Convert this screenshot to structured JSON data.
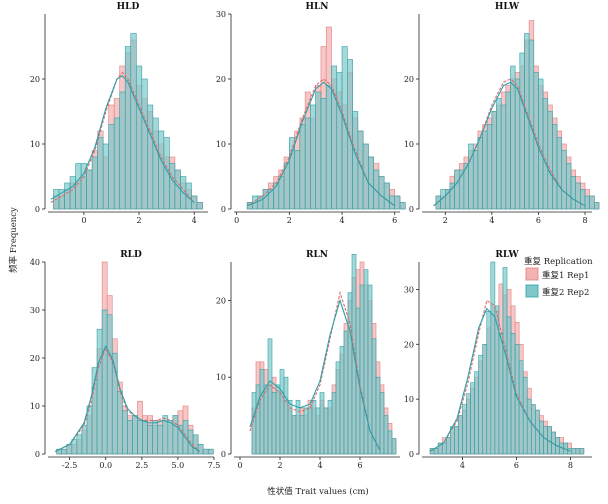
{
  "figure": {
    "ylabel": "频率 Frequency",
    "xlabel": "性状值 Trait values (cm)"
  },
  "legend": {
    "title": "重复 Replication",
    "entries": [
      {
        "label": "重复1 Rep1",
        "fill": "#f4b3b3",
        "stroke": "#e08080"
      },
      {
        "label": "重复2 Rep2",
        "fill": "#7fc7c9",
        "stroke": "#2fa0a5"
      }
    ]
  },
  "colors": {
    "rep1_fill": "#f4b3b3",
    "rep1_stroke": "#e08080",
    "rep1_curve": "#e06b6b",
    "rep2_fill": "#7fc7c9",
    "rep2_stroke": "#2fa0a5",
    "rep2_curve": "#2aa0a8"
  },
  "chart_data": [
    {
      "type": "bar",
      "title": "HLD",
      "xlim": [
        -1.3,
        4.5
      ],
      "ylim": [
        0,
        30
      ],
      "xticks": [
        {
          "v": 0,
          "t": "0"
        },
        {
          "v": 2,
          "t": "2"
        },
        {
          "v": 4,
          "t": "4"
        }
      ],
      "yticks": [
        {
          "v": 0,
          "t": "0"
        },
        {
          "v": 10,
          "t": "10"
        },
        {
          "v": 20,
          "t": "20"
        }
      ],
      "bins": {
        "start": -1.1,
        "width": 0.2
      },
      "series": [
        {
          "name": "重复1 Rep1",
          "values": [
            2,
            2,
            3,
            4,
            4,
            5,
            6,
            9,
            12,
            8,
            16,
            17,
            22,
            24,
            26,
            19,
            17,
            15,
            12,
            10,
            8,
            8,
            6,
            4,
            3,
            2,
            1
          ]
        },
        {
          "name": "重复2 Rep2",
          "values": [
            3,
            3,
            4,
            5,
            7,
            7,
            6,
            8,
            11,
            10,
            13,
            14,
            18,
            25,
            27,
            22,
            20,
            16,
            14,
            12,
            11,
            7,
            6,
            5,
            4,
            2,
            1
          ]
        }
      ],
      "curves": [
        {
          "name": "重复1 Rep1",
          "x": [
            -1.2,
            -0.8,
            -0.4,
            0,
            0.4,
            0.8,
            1.2,
            1.4,
            1.6,
            2.0,
            2.4,
            2.8,
            3.2,
            3.6,
            4.0
          ],
          "y": [
            1,
            2,
            3,
            5,
            9,
            15,
            20,
            21,
            20,
            16,
            12,
            8,
            5,
            3,
            1
          ]
        },
        {
          "name": "重复2 Rep2",
          "x": [
            -1.2,
            -0.8,
            -0.4,
            0,
            0.4,
            0.8,
            1.2,
            1.4,
            1.6,
            2.0,
            2.4,
            2.8,
            3.2,
            3.6,
            4.0
          ],
          "y": [
            1.5,
            2.5,
            3.5,
            5.5,
            9.5,
            15.5,
            20,
            20.5,
            19.5,
            15.5,
            11.5,
            7.5,
            4.5,
            2.5,
            1
          ]
        }
      ]
    },
    {
      "type": "bar",
      "title": "HLN",
      "xlim": [
        -0.1,
        6.2
      ],
      "ylim": [
        0,
        30
      ],
      "xticks": [
        {
          "v": 0,
          "t": "0"
        },
        {
          "v": 2,
          "t": "2"
        },
        {
          "v": 4,
          "t": "4"
        },
        {
          "v": 6,
          "t": "6"
        }
      ],
      "yticks": [
        {
          "v": 0,
          "t": "0"
        },
        {
          "v": 10,
          "t": "10"
        },
        {
          "v": 20,
          "t": "20"
        },
        {
          "v": 30,
          "t": "30"
        }
      ],
      "bins": {
        "start": 0.4,
        "width": 0.2
      },
      "series": [
        {
          "name": "重复1 Rep1",
          "values": [
            1,
            1,
            2,
            3,
            4,
            5,
            6,
            8,
            9,
            12,
            14,
            18,
            14,
            19,
            25,
            28,
            20,
            18,
            16,
            21,
            14,
            12,
            10,
            8,
            7,
            5,
            4,
            3,
            2,
            1
          ]
        },
        {
          "name": "重复2 Rep2",
          "values": [
            1,
            2,
            2,
            3,
            3,
            4,
            5,
            7,
            11,
            9,
            13,
            14,
            16,
            18,
            17,
            19,
            22,
            21,
            25,
            23,
            15,
            12,
            10,
            8,
            6,
            5,
            4,
            2,
            2,
            1
          ]
        }
      ],
      "curves": [
        {
          "name": "重复1 Rep1",
          "x": [
            0.4,
            1.0,
            1.5,
            2.0,
            2.5,
            3.0,
            3.3,
            3.6,
            4.0,
            4.5,
            5.0,
            5.5,
            6.0
          ],
          "y": [
            0.5,
            2,
            4,
            8,
            14,
            19,
            20,
            19,
            15,
            9,
            4,
            2,
            0.5
          ]
        },
        {
          "name": "重复2 Rep2",
          "x": [
            0.4,
            1.0,
            1.5,
            2.0,
            2.5,
            3.0,
            3.3,
            3.6,
            4.0,
            4.5,
            5.0,
            5.5,
            6.0
          ],
          "y": [
            0.5,
            1.5,
            3.5,
            7.5,
            13.5,
            18.5,
            19.5,
            18.5,
            14.5,
            8.5,
            4,
            2,
            0.5
          ]
        }
      ]
    },
    {
      "type": "bar",
      "title": "HLW",
      "xlim": [
        1.0,
        8.3
      ],
      "ylim": [
        0,
        30
      ],
      "xticks": [
        {
          "v": 2,
          "t": "2"
        },
        {
          "v": 4,
          "t": "4"
        },
        {
          "v": 6,
          "t": "6"
        },
        {
          "v": 8,
          "t": "8"
        }
      ],
      "yticks": [
        {
          "v": 0,
          "t": "0"
        },
        {
          "v": 10,
          "t": "10"
        },
        {
          "v": 20,
          "t": "20"
        }
      ],
      "bins": {
        "start": 1.6,
        "width": 0.2
      },
      "series": [
        {
          "name": "重复1 Rep1",
          "values": [
            2,
            2,
            3,
            5,
            6,
            7,
            8,
            9,
            10,
            12,
            13,
            14,
            15,
            16,
            18,
            19,
            20,
            21,
            22,
            26,
            29,
            22,
            19,
            18,
            16,
            14,
            12,
            10,
            8,
            6,
            5,
            4,
            3,
            2,
            1
          ]
        },
        {
          "name": "重复2 Rep2",
          "values": [
            2,
            3,
            3,
            4,
            6,
            6,
            7,
            10,
            9,
            11,
            12,
            13,
            15,
            17,
            16,
            18,
            22,
            20,
            24,
            27,
            26,
            21,
            20,
            17,
            15,
            13,
            11,
            9,
            7,
            5,
            4,
            3,
            2,
            2,
            1
          ]
        }
      ],
      "curves": [
        {
          "name": "重复1 Rep1",
          "x": [
            1.5,
            2.0,
            2.5,
            3.0,
            3.5,
            4.0,
            4.5,
            4.8,
            5.1,
            5.5,
            6.0,
            6.5,
            7.0,
            7.5,
            8.0
          ],
          "y": [
            0.5,
            2,
            4,
            7,
            11,
            16,
            19.5,
            20,
            19,
            15,
            10,
            6,
            3,
            1.5,
            0.5
          ]
        },
        {
          "name": "重复2 Rep2",
          "x": [
            1.5,
            2.0,
            2.5,
            3.0,
            3.5,
            4.0,
            4.5,
            4.8,
            5.1,
            5.5,
            6.0,
            6.5,
            7.0,
            7.5,
            8.0
          ],
          "y": [
            0.5,
            2,
            4,
            7,
            11,
            15.5,
            19,
            19.5,
            18.5,
            14.5,
            9.5,
            5.5,
            3,
            1.5,
            0.5
          ]
        }
      ]
    },
    {
      "type": "bar",
      "title": "RLD",
      "xlim": [
        -4.0,
        7.5
      ],
      "ylim": [
        0,
        40
      ],
      "xticks": [
        {
          "v": -2.5,
          "t": "-2.5"
        },
        {
          "v": 0,
          "t": "0.0"
        },
        {
          "v": 2.5,
          "t": "2.5"
        },
        {
          "v": 5,
          "t": "5.0"
        },
        {
          "v": 7.5,
          "t": "7.5"
        }
      ],
      "yticks": [
        {
          "v": 0,
          "t": "0"
        },
        {
          "v": 10,
          "t": "10"
        },
        {
          "v": 20,
          "t": "20"
        },
        {
          "v": 30,
          "t": "30"
        },
        {
          "v": 40,
          "t": "40"
        }
      ],
      "bins": {
        "start": -3.4,
        "width": 0.35
      },
      "series": [
        {
          "name": "重复1 Rep1",
          "values": [
            1,
            1,
            2,
            2,
            3,
            5,
            8,
            14,
            22,
            40,
            33,
            24,
            15,
            10,
            8,
            8,
            11,
            8,
            8,
            6,
            7,
            7,
            6,
            8,
            9,
            10,
            6,
            4,
            2,
            1,
            1
          ]
        },
        {
          "name": "重复2 Rep2",
          "values": [
            1,
            1,
            2,
            3,
            4,
            6,
            10,
            18,
            26,
            30,
            29,
            21,
            13,
            9,
            7,
            8,
            7,
            7,
            6,
            7,
            6,
            8,
            7,
            8,
            6,
            7,
            5,
            4,
            2,
            1,
            1
          ]
        }
      ],
      "curves": [
        {
          "name": "重复1 Rep1",
          "x": [
            -3.5,
            -2.5,
            -1.5,
            -1.0,
            -0.5,
            0.0,
            0.5,
            1.0,
            1.5,
            2.0,
            2.5,
            3.0,
            3.5,
            4.0,
            4.5,
            5.0,
            5.5,
            6.0,
            6.5
          ],
          "y": [
            0.5,
            2,
            6,
            11,
            18,
            22,
            19,
            13,
            9,
            8,
            7,
            7,
            7,
            7.5,
            7,
            6,
            4,
            2,
            0.5
          ]
        },
        {
          "name": "重复2 Rep2",
          "x": [
            -3.5,
            -2.5,
            -1.5,
            -1.0,
            -0.5,
            0.0,
            0.5,
            1.0,
            1.5,
            2.0,
            2.5,
            3.0,
            3.5,
            4.0,
            4.5,
            5.0,
            5.5,
            6.0,
            6.5
          ],
          "y": [
            0.5,
            2,
            6.5,
            12,
            19,
            22.5,
            19.5,
            13.5,
            9.5,
            8,
            7,
            6.5,
            6.5,
            7,
            6.5,
            5.5,
            3.5,
            1.5,
            0.5
          ]
        }
      ]
    },
    {
      "type": "bar",
      "title": "RLN",
      "xlim": [
        -0.3,
        8.0
      ],
      "ylim": [
        0,
        25
      ],
      "xticks": [
        {
          "v": 0,
          "t": "0"
        },
        {
          "v": 2,
          "t": "2"
        },
        {
          "v": 4,
          "t": "4"
        },
        {
          "v": 6,
          "t": "6"
        }
      ],
      "yticks": [
        {
          "v": 0,
          "t": "0"
        },
        {
          "v": 10,
          "t": "10"
        },
        {
          "v": 20,
          "t": "20"
        }
      ],
      "bins": {
        "start": 0.6,
        "width": 0.2
      },
      "series": [
        {
          "name": "重复1 Rep1",
          "values": [
            6,
            12,
            12,
            11,
            9,
            10,
            8,
            8,
            7,
            6,
            5,
            5,
            6,
            5,
            7,
            6,
            5,
            7,
            6,
            6,
            9,
            11,
            13,
            17,
            20,
            23,
            24,
            25,
            22,
            20,
            17,
            12,
            9,
            6,
            4,
            2
          ]
        },
        {
          "name": "重复2 Rep2",
          "values": [
            8,
            9,
            11,
            9,
            15,
            8,
            9,
            11,
            10,
            7,
            5,
            7,
            5,
            6,
            6,
            7,
            6,
            8,
            6,
            7,
            8,
            12,
            14,
            16,
            21,
            26,
            19,
            22,
            24,
            22,
            15,
            10,
            8,
            5,
            3,
            2
          ]
        }
      ],
      "curves": [
        {
          "name": "重复1 Rep1",
          "x": [
            0.5,
            1.0,
            1.5,
            2.0,
            2.5,
            3.0,
            3.5,
            4.0,
            4.5,
            5.0,
            5.5,
            6.0,
            6.5,
            7.0
          ],
          "y": [
            3,
            7,
            9,
            8,
            6,
            5.5,
            6,
            9,
            15,
            21,
            17,
            9,
            3,
            0.5
          ]
        },
        {
          "name": "重复2 Rep2",
          "x": [
            0.5,
            1.0,
            1.5,
            2.0,
            2.5,
            3.0,
            3.5,
            4.0,
            4.5,
            5.0,
            5.5,
            6.0,
            6.5,
            7.0
          ],
          "y": [
            3.5,
            7.5,
            9.5,
            8.5,
            6.5,
            6,
            6.5,
            9.5,
            15.5,
            20,
            16,
            8.5,
            3,
            0.5
          ]
        }
      ]
    },
    {
      "type": "bar",
      "title": "RLW",
      "xlim": [
        2.5,
        8.8
      ],
      "ylim": [
        0,
        35
      ],
      "xticks": [
        {
          "v": 4,
          "t": "4"
        },
        {
          "v": 6,
          "t": "6"
        },
        {
          "v": 8,
          "t": "8"
        }
      ],
      "yticks": [
        {
          "v": 0,
          "t": "0"
        },
        {
          "v": 10,
          "t": "10"
        },
        {
          "v": 20,
          "t": "20"
        },
        {
          "v": 30,
          "t": "30"
        }
      ],
      "bins": {
        "start": 2.8,
        "width": 0.15
      },
      "series": [
        {
          "name": "重复1 Rep1",
          "values": [
            1,
            1,
            2,
            3,
            3,
            4,
            5,
            7,
            8,
            10,
            12,
            14,
            17,
            20,
            23,
            27,
            26,
            31,
            29,
            30,
            27,
            24,
            20,
            15,
            12,
            9,
            8,
            7,
            6,
            5,
            4,
            3,
            3,
            2,
            2,
            1,
            1,
            1
          ]
        },
        {
          "name": "重复2 Rep2",
          "values": [
            1,
            1,
            2,
            2,
            3,
            5,
            5,
            7,
            9,
            11,
            13,
            15,
            18,
            20,
            26,
            35,
            27,
            22,
            34,
            25,
            22,
            20,
            17,
            14,
            10,
            9,
            8,
            6,
            5,
            5,
            4,
            3,
            2,
            2,
            1,
            1,
            1,
            1
          ]
        }
      ],
      "curves": [
        {
          "name": "重复1 Rep1",
          "x": [
            2.8,
            3.3,
            3.8,
            4.2,
            4.6,
            4.9,
            5.2,
            5.6,
            6.0,
            6.5,
            7.0,
            7.5,
            8.0
          ],
          "y": [
            0.5,
            2,
            6,
            13,
            22,
            28,
            27,
            19,
            11,
            6,
            3,
            1.5,
            0.5
          ]
        },
        {
          "name": "重复2 Rep2",
          "x": [
            2.8,
            3.3,
            3.8,
            4.2,
            4.6,
            4.9,
            5.2,
            5.6,
            6.0,
            6.5,
            7.0,
            7.5,
            8.0
          ],
          "y": [
            0.5,
            2,
            6.5,
            14,
            23,
            26.5,
            25,
            18,
            10.5,
            6,
            3,
            1.5,
            0.5
          ]
        }
      ]
    }
  ]
}
